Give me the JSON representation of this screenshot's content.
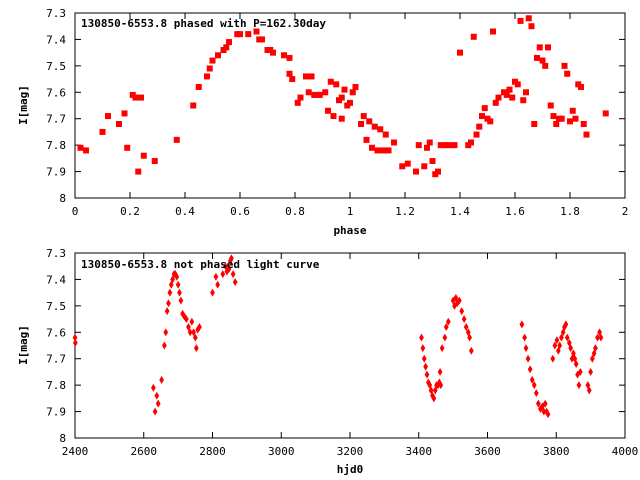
{
  "colors": {
    "points": "#ff0000",
    "axes": "#000000",
    "background": "#ffffff"
  },
  "chart_data": [
    {
      "type": "scatter",
      "title": "130850-6553.8 phased with P=162.30day",
      "xlabel": "phase",
      "ylabel": "I[mag]",
      "xlim": [
        0,
        2
      ],
      "ylim": [
        7.3,
        8.0
      ],
      "y_inverted": true,
      "x_ticks": [
        "0",
        "0.2",
        "0.4",
        "0.6",
        "0.8",
        "1",
        "1.2",
        "1.4",
        "1.6",
        "1.8",
        "2"
      ],
      "y_ticks": [
        "7.3",
        "7.4",
        "7.5",
        "7.6",
        "7.7",
        "7.8",
        "7.9",
        "8"
      ],
      "grid": false,
      "marker": "filled-square",
      "points": [
        [
          0.02,
          7.81
        ],
        [
          0.04,
          7.82
        ],
        [
          0.1,
          7.75
        ],
        [
          0.12,
          7.69
        ],
        [
          0.16,
          7.72
        ],
        [
          0.18,
          7.68
        ],
        [
          0.19,
          7.81
        ],
        [
          0.21,
          7.61
        ],
        [
          0.22,
          7.62
        ],
        [
          0.23,
          7.9
        ],
        [
          0.24,
          7.62
        ],
        [
          0.25,
          7.84
        ],
        [
          0.29,
          7.86
        ],
        [
          0.37,
          7.78
        ],
        [
          0.43,
          7.65
        ],
        [
          0.45,
          7.58
        ],
        [
          0.48,
          7.54
        ],
        [
          0.49,
          7.51
        ],
        [
          0.5,
          7.48
        ],
        [
          0.52,
          7.46
        ],
        [
          0.54,
          7.44
        ],
        [
          0.55,
          7.43
        ],
        [
          0.56,
          7.41
        ],
        [
          0.59,
          7.38
        ],
        [
          0.6,
          7.38
        ],
        [
          0.63,
          7.38
        ],
        [
          0.66,
          7.37
        ],
        [
          0.67,
          7.4
        ],
        [
          0.68,
          7.4
        ],
        [
          0.7,
          7.44
        ],
        [
          0.71,
          7.44
        ],
        [
          0.72,
          7.45
        ],
        [
          0.76,
          7.46
        ],
        [
          0.78,
          7.47
        ],
        [
          0.78,
          7.53
        ],
        [
          0.79,
          7.55
        ],
        [
          0.81,
          7.64
        ],
        [
          0.82,
          7.62
        ],
        [
          0.84,
          7.54
        ],
        [
          0.85,
          7.6
        ],
        [
          0.86,
          7.54
        ],
        [
          0.87,
          7.61
        ],
        [
          0.88,
          7.61
        ],
        [
          0.89,
          7.61
        ],
        [
          0.91,
          7.6
        ],
        [
          0.92,
          7.67
        ],
        [
          0.93,
          7.56
        ],
        [
          0.94,
          7.69
        ],
        [
          0.95,
          7.57
        ],
        [
          0.96,
          7.63
        ],
        [
          0.97,
          7.62
        ],
        [
          0.97,
          7.7
        ],
        [
          0.98,
          7.59
        ],
        [
          0.99,
          7.65
        ],
        [
          1.0,
          7.64
        ],
        [
          1.01,
          7.6
        ],
        [
          1.02,
          7.58
        ],
        [
          1.04,
          7.72
        ],
        [
          1.05,
          7.69
        ],
        [
          1.06,
          7.78
        ],
        [
          1.07,
          7.71
        ],
        [
          1.08,
          7.81
        ],
        [
          1.09,
          7.73
        ],
        [
          1.1,
          7.82
        ],
        [
          1.11,
          7.74
        ],
        [
          1.12,
          7.82
        ],
        [
          1.13,
          7.76
        ],
        [
          1.14,
          7.82
        ],
        [
          1.16,
          7.79
        ],
        [
          1.19,
          7.88
        ],
        [
          1.21,
          7.87
        ],
        [
          1.24,
          7.9
        ],
        [
          1.25,
          7.8
        ],
        [
          1.27,
          7.88
        ],
        [
          1.28,
          7.81
        ],
        [
          1.29,
          7.79
        ],
        [
          1.3,
          7.86
        ],
        [
          1.31,
          7.91
        ],
        [
          1.32,
          7.9
        ],
        [
          1.33,
          7.8
        ],
        [
          1.35,
          7.8
        ],
        [
          1.36,
          7.8
        ],
        [
          1.38,
          7.8
        ],
        [
          1.4,
          7.45
        ],
        [
          1.43,
          7.8
        ],
        [
          1.44,
          7.79
        ],
        [
          1.45,
          7.39
        ],
        [
          1.46,
          7.76
        ],
        [
          1.47,
          7.73
        ],
        [
          1.48,
          7.69
        ],
        [
          1.49,
          7.66
        ],
        [
          1.5,
          7.7
        ],
        [
          1.51,
          7.71
        ],
        [
          1.52,
          7.37
        ],
        [
          1.53,
          7.64
        ],
        [
          1.54,
          7.62
        ],
        [
          1.56,
          7.6
        ],
        [
          1.57,
          7.61
        ],
        [
          1.58,
          7.59
        ],
        [
          1.59,
          7.62
        ],
        [
          1.6,
          7.56
        ],
        [
          1.61,
          7.57
        ],
        [
          1.62,
          7.33
        ],
        [
          1.63,
          7.63
        ],
        [
          1.64,
          7.6
        ],
        [
          1.65,
          7.32
        ],
        [
          1.66,
          7.35
        ],
        [
          1.67,
          7.72
        ],
        [
          1.68,
          7.47
        ],
        [
          1.69,
          7.43
        ],
        [
          1.7,
          7.48
        ],
        [
          1.71,
          7.5
        ],
        [
          1.72,
          7.43
        ],
        [
          1.73,
          7.65
        ],
        [
          1.74,
          7.69
        ],
        [
          1.75,
          7.72
        ],
        [
          1.76,
          7.7
        ],
        [
          1.77,
          7.7
        ],
        [
          1.78,
          7.5
        ],
        [
          1.79,
          7.53
        ],
        [
          1.8,
          7.71
        ],
        [
          1.81,
          7.67
        ],
        [
          1.82,
          7.7
        ],
        [
          1.83,
          7.57
        ],
        [
          1.84,
          7.58
        ],
        [
          1.85,
          7.72
        ],
        [
          1.86,
          7.76
        ],
        [
          1.93,
          7.68
        ]
      ]
    },
    {
      "type": "scatter",
      "title": "130850-6553.8 not phased light curve",
      "xlabel": "hjd0",
      "ylabel": "I[mag]",
      "xlim": [
        2400,
        4000
      ],
      "ylim": [
        7.3,
        8.0
      ],
      "y_inverted": true,
      "x_ticks": [
        "2400",
        "2600",
        "2800",
        "3000",
        "3200",
        "3400",
        "3600",
        "3800",
        "4000"
      ],
      "y_ticks": [
        "7.3",
        "7.4",
        "7.5",
        "7.6",
        "7.7",
        "7.8",
        "7.9",
        "8"
      ],
      "grid": false,
      "marker": "small-diamond",
      "points": [
        [
          2400,
          7.62
        ],
        [
          2401,
          7.64
        ],
        [
          2628,
          7.81
        ],
        [
          2633,
          7.9
        ],
        [
          2638,
          7.84
        ],
        [
          2642,
          7.87
        ],
        [
          2652,
          7.78
        ],
        [
          2660,
          7.65
        ],
        [
          2664,
          7.6
        ],
        [
          2668,
          7.52
        ],
        [
          2672,
          7.49
        ],
        [
          2676,
          7.45
        ],
        [
          2680,
          7.42
        ],
        [
          2684,
          7.4
        ],
        [
          2688,
          7.38
        ],
        [
          2692,
          7.38
        ],
        [
          2696,
          7.39
        ],
        [
          2700,
          7.42
        ],
        [
          2704,
          7.45
        ],
        [
          2708,
          7.48
        ],
        [
          2713,
          7.53
        ],
        [
          2718,
          7.54
        ],
        [
          2724,
          7.55
        ],
        [
          2730,
          7.58
        ],
        [
          2735,
          7.6
        ],
        [
          2740,
          7.56
        ],
        [
          2745,
          7.6
        ],
        [
          2750,
          7.62
        ],
        [
          2753,
          7.66
        ],
        [
          2757,
          7.59
        ],
        [
          2762,
          7.58
        ],
        [
          2800,
          7.45
        ],
        [
          2810,
          7.39
        ],
        [
          2815,
          7.42
        ],
        [
          2830,
          7.38
        ],
        [
          2838,
          7.35
        ],
        [
          2842,
          7.37
        ],
        [
          2848,
          7.36
        ],
        [
          2852,
          7.33
        ],
        [
          2855,
          7.32
        ],
        [
          2860,
          7.38
        ],
        [
          2866,
          7.41
        ],
        [
          3408,
          7.62
        ],
        [
          3412,
          7.66
        ],
        [
          3416,
          7.7
        ],
        [
          3420,
          7.73
        ],
        [
          3424,
          7.76
        ],
        [
          3428,
          7.79
        ],
        [
          3432,
          7.8
        ],
        [
          3436,
          7.82
        ],
        [
          3440,
          7.84
        ],
        [
          3444,
          7.85
        ],
        [
          3448,
          7.82
        ],
        [
          3452,
          7.8
        ],
        [
          3456,
          7.8
        ],
        [
          3460,
          7.79
        ],
        [
          3462,
          7.75
        ],
        [
          3464,
          7.8
        ],
        [
          3468,
          7.66
        ],
        [
          3476,
          7.62
        ],
        [
          3480,
          7.58
        ],
        [
          3486,
          7.56
        ],
        [
          3500,
          7.48
        ],
        [
          3504,
          7.5
        ],
        [
          3508,
          7.47
        ],
        [
          3512,
          7.49
        ],
        [
          3518,
          7.48
        ],
        [
          3525,
          7.52
        ],
        [
          3532,
          7.55
        ],
        [
          3538,
          7.58
        ],
        [
          3544,
          7.6
        ],
        [
          3548,
          7.62
        ],
        [
          3553,
          7.67
        ],
        [
          3700,
          7.57
        ],
        [
          3708,
          7.62
        ],
        [
          3712,
          7.66
        ],
        [
          3718,
          7.7
        ],
        [
          3724,
          7.74
        ],
        [
          3730,
          7.78
        ],
        [
          3736,
          7.8
        ],
        [
          3742,
          7.83
        ],
        [
          3748,
          7.87
        ],
        [
          3754,
          7.89
        ],
        [
          3760,
          7.88
        ],
        [
          3764,
          7.9
        ],
        [
          3768,
          7.87
        ],
        [
          3772,
          7.9
        ],
        [
          3776,
          7.91
        ],
        [
          3790,
          7.7
        ],
        [
          3796,
          7.65
        ],
        [
          3802,
          7.63
        ],
        [
          3806,
          7.67
        ],
        [
          3810,
          7.65
        ],
        [
          3815,
          7.62
        ],
        [
          3820,
          7.6
        ],
        [
          3824,
          7.58
        ],
        [
          3828,
          7.57
        ],
        [
          3832,
          7.62
        ],
        [
          3838,
          7.64
        ],
        [
          3842,
          7.66
        ],
        [
          3846,
          7.7
        ],
        [
          3850,
          7.68
        ],
        [
          3854,
          7.7
        ],
        [
          3858,
          7.72
        ],
        [
          3862,
          7.76
        ],
        [
          3866,
          7.8
        ],
        [
          3870,
          7.75
        ],
        [
          3892,
          7.8
        ],
        [
          3896,
          7.82
        ],
        [
          3900,
          7.75
        ],
        [
          3905,
          7.7
        ],
        [
          3910,
          7.68
        ],
        [
          3914,
          7.66
        ],
        [
          3920,
          7.62
        ],
        [
          3926,
          7.6
        ],
        [
          3930,
          7.62
        ]
      ]
    }
  ]
}
